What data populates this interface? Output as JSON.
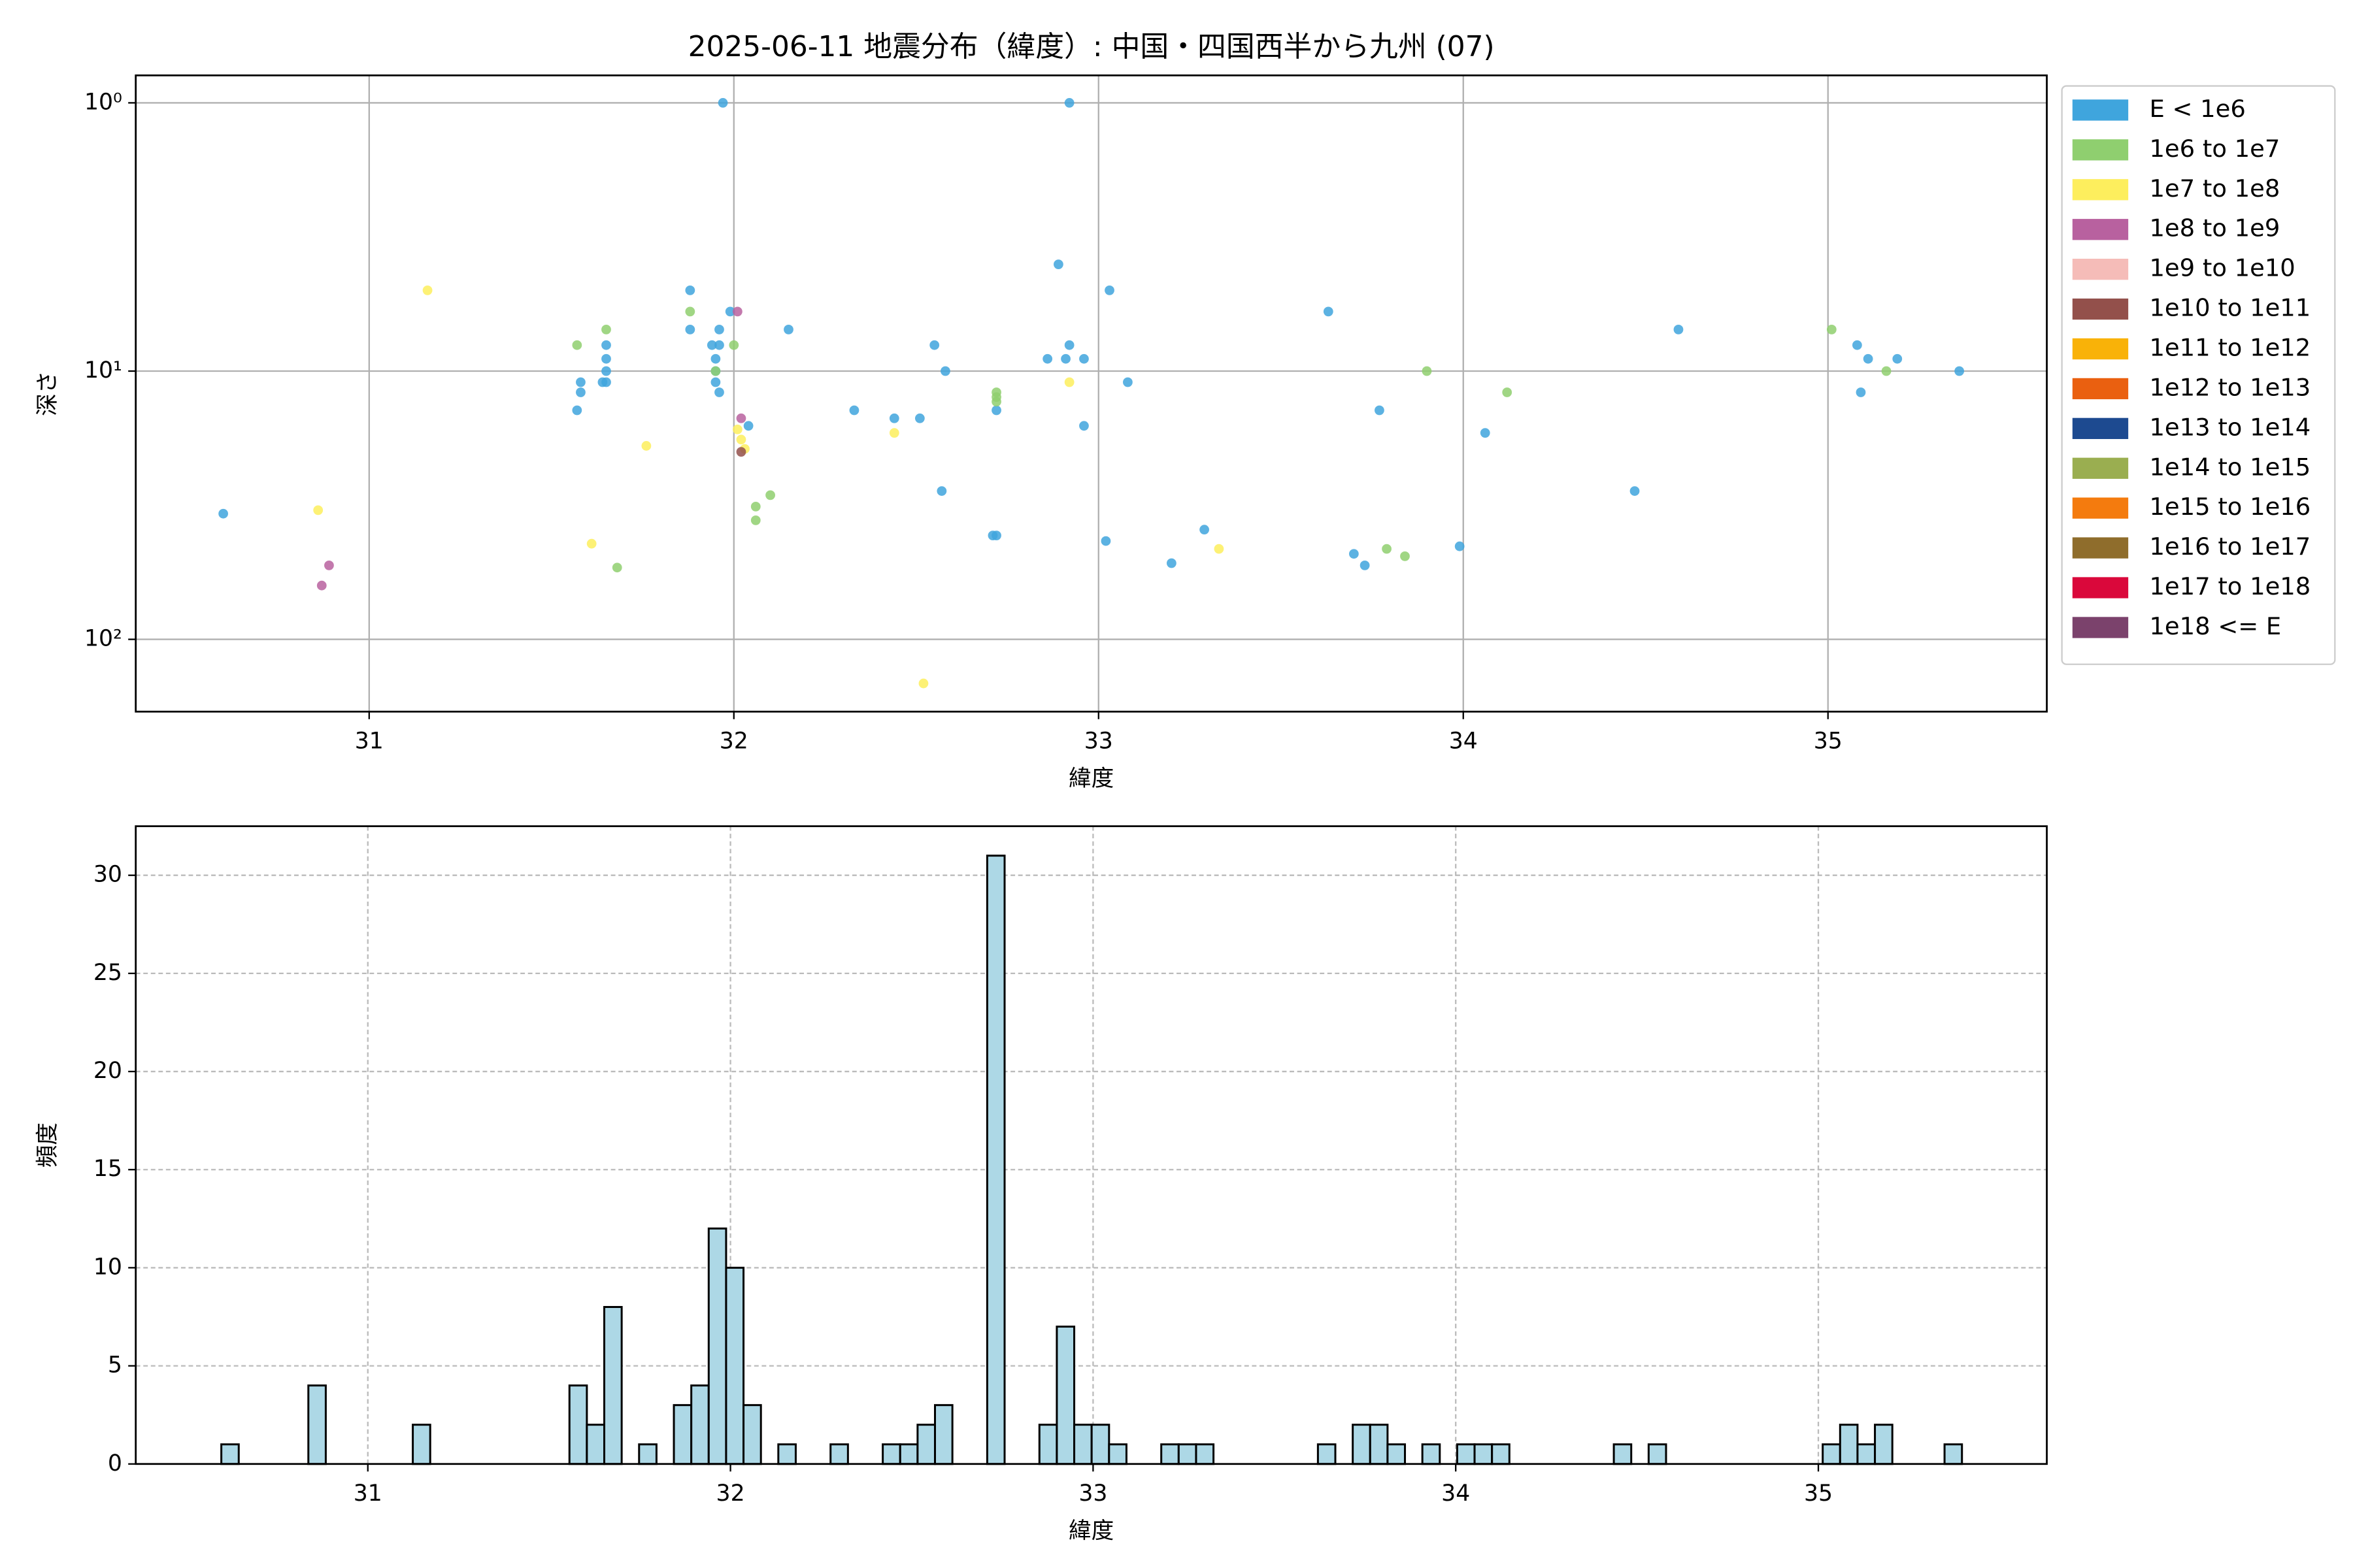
{
  "chart_data": [
    {
      "type": "scatter",
      "title": "2025-06-11 地震分布（緯度）: 中国・四国西半から九州 (07)",
      "xlabel": "緯度",
      "ylabel": "深さ",
      "xlim": [
        30.36,
        35.6
      ],
      "xticks": [
        31,
        32,
        33,
        34,
        35
      ],
      "ylim": [
        186,
        0.79
      ],
      "log_y": true,
      "yticks": [
        {
          "value": 1,
          "label": "10⁰"
        },
        {
          "value": 10,
          "label": "10¹"
        },
        {
          "value": 100,
          "label": "10²"
        }
      ],
      "grid": true,
      "legend": "outside right",
      "series": [
        {
          "name": "E < 1e6",
          "color": "#3fa5dd",
          "x": [
            30.6,
            31.97,
            32.92,
            32.89,
            33.03,
            31.88,
            31.88,
            31.96,
            32.15,
            33.63,
            34.59,
            31.65,
            31.65,
            31.58,
            31.58,
            31.57,
            31.65,
            31.64,
            31.65,
            31.94,
            31.96,
            31.95,
            31.95,
            31.95,
            31.96,
            32.55,
            32.58,
            32.86,
            32.92,
            32.91,
            32.96,
            33.08,
            35.08,
            35.11,
            35.19,
            35.36,
            35.09,
            32.33,
            32.44,
            32.51,
            32.04,
            32.96,
            32.72,
            34.06,
            32.57,
            34.47,
            32.71,
            32.72,
            33.02,
            33.29,
            33.99,
            33.2,
            33.7,
            33.73,
            33.77,
            31.99
          ],
          "values": [
            34,
            1,
            1,
            4,
            5,
            5,
            7,
            7,
            7,
            6,
            7,
            8,
            9,
            11,
            12,
            14,
            11,
            11,
            10,
            8,
            8,
            9,
            10,
            11,
            12,
            8,
            10,
            9,
            8,
            9,
            9,
            11,
            8,
            9,
            9,
            10,
            12,
            14,
            15,
            15,
            16,
            16,
            14,
            17,
            28,
            28,
            41,
            41,
            43,
            39,
            45,
            52,
            48,
            53,
            14,
            6
          ]
        },
        {
          "name": "1e6 to 1e7",
          "color": "#8fcf6f",
          "x": [
            31.57,
            31.65,
            31.88,
            32.0,
            31.95,
            32.72,
            32.72,
            32.72,
            32.06,
            32.1,
            32.06,
            31.68,
            33.9,
            34.12,
            35.01,
            35.16,
            33.79,
            33.84
          ],
          "values": [
            8,
            7,
            6,
            8,
            10,
            12,
            13,
            12.5,
            32,
            29,
            36,
            54,
            10,
            12,
            7,
            10,
            46,
            49
          ]
        },
        {
          "name": "1e7 to 1e8",
          "color": "#fdee5d",
          "x": [
            31.16,
            31.76,
            30.86,
            31.61,
            32.92,
            32.44,
            33.33,
            32.52,
            32.01,
            32.03,
            32.02
          ],
          "values": [
            5,
            19,
            33,
            44,
            11,
            17,
            46,
            146,
            16.5,
            19.5,
            18
          ]
        },
        {
          "name": "1e8 to 1e9",
          "color": "#b8619f",
          "x": [
            30.89,
            30.87,
            32.02,
            32.01
          ],
          "values": [
            53,
            63,
            15,
            6
          ]
        },
        {
          "name": "1e9 to 1e10",
          "color": "#f5bcb8",
          "x": [],
          "values": []
        },
        {
          "name": "1e10 to 1e11",
          "color": "#93504b",
          "x": [
            32.02
          ],
          "values": [
            20
          ]
        },
        {
          "name": "1e11 to 1e12",
          "color": "#f9b208",
          "x": [],
          "values": []
        },
        {
          "name": "1e12 to 1e13",
          "color": "#ea6010",
          "x": [],
          "values": []
        },
        {
          "name": "1e13 to 1e14",
          "color": "#1d4a90",
          "x": [],
          "values": []
        },
        {
          "name": "1e14 to 1e15",
          "color": "#9aae50",
          "x": [],
          "values": []
        },
        {
          "name": "1e15 to 1e16",
          "color": "#f47b0e",
          "x": [],
          "values": []
        },
        {
          "name": "1e16 to 1e17",
          "color": "#8f6d2c",
          "x": [],
          "values": []
        },
        {
          "name": "1e17 to 1e18",
          "color": "#da083b",
          "x": [],
          "values": []
        },
        {
          "name": "1e18 <= E",
          "color": "#7b426c",
          "x": [],
          "values": []
        }
      ]
    },
    {
      "type": "histogram",
      "xlabel": "緯度",
      "ylabel": "頻度",
      "color": "#add8e6",
      "xlim": [
        30.36,
        35.63
      ],
      "xticks": [
        31,
        32,
        33,
        34,
        35
      ],
      "ylim": [
        0,
        32.5
      ],
      "yticks": [
        0,
        5,
        10,
        15,
        20,
        25,
        30
      ],
      "grid": true,
      "grid_linestyle": "dashed",
      "bins": [
        30.596,
        30.644,
        30.692,
        30.74,
        30.788,
        30.836,
        30.884,
        30.932,
        30.98,
        31.028,
        31.076,
        31.124,
        31.172,
        31.22,
        31.268,
        31.316,
        31.364,
        31.412,
        31.46,
        31.508,
        31.556,
        31.604,
        31.652,
        31.7,
        31.748,
        31.796,
        31.844,
        31.892,
        31.94,
        31.988,
        32.036,
        32.084,
        32.132,
        32.18,
        32.228,
        32.276,
        32.324,
        32.372,
        32.42,
        32.468,
        32.516,
        32.564,
        32.612,
        32.66,
        32.708,
        32.756,
        32.804,
        32.852,
        32.9,
        32.948,
        32.996,
        33.044,
        33.092,
        33.14,
        33.188,
        33.236,
        33.284,
        33.332,
        33.38,
        33.428,
        33.476,
        33.524,
        33.572,
        33.62,
        33.668,
        33.716,
        33.764,
        33.812,
        33.86,
        33.908,
        33.956,
        34.004,
        34.052,
        34.1,
        34.148,
        34.196,
        34.244,
        34.292,
        34.34,
        34.388,
        34.436,
        34.484,
        34.532,
        34.58,
        34.628,
        34.676,
        34.724,
        34.772,
        34.82,
        34.868,
        34.916,
        34.964,
        35.012,
        35.06,
        35.108,
        35.156,
        35.204,
        35.252,
        35.3,
        35.348,
        35.396
      ],
      "values": [
        1,
        0,
        0,
        0,
        0,
        4,
        0,
        0,
        0,
        0,
        0,
        2,
        0,
        0,
        0,
        0,
        0,
        0,
        0,
        0,
        4,
        2,
        8,
        0,
        1,
        0,
        3,
        4,
        12,
        10,
        3,
        0,
        1,
        0,
        0,
        1,
        0,
        0,
        1,
        1,
        2,
        3,
        0,
        0,
        31,
        0,
        0,
        2,
        7,
        2,
        2,
        1,
        0,
        0,
        1,
        1,
        1,
        0,
        0,
        0,
        0,
        0,
        0,
        1,
        0,
        2,
        2,
        1,
        0,
        1,
        0,
        1,
        1,
        1,
        0,
        0,
        0,
        0,
        0,
        0,
        1,
        0,
        1,
        0,
        0,
        0,
        0,
        0,
        0,
        0,
        0,
        0,
        1,
        2,
        1,
        2,
        0,
        0,
        0,
        1
      ]
    }
  ]
}
